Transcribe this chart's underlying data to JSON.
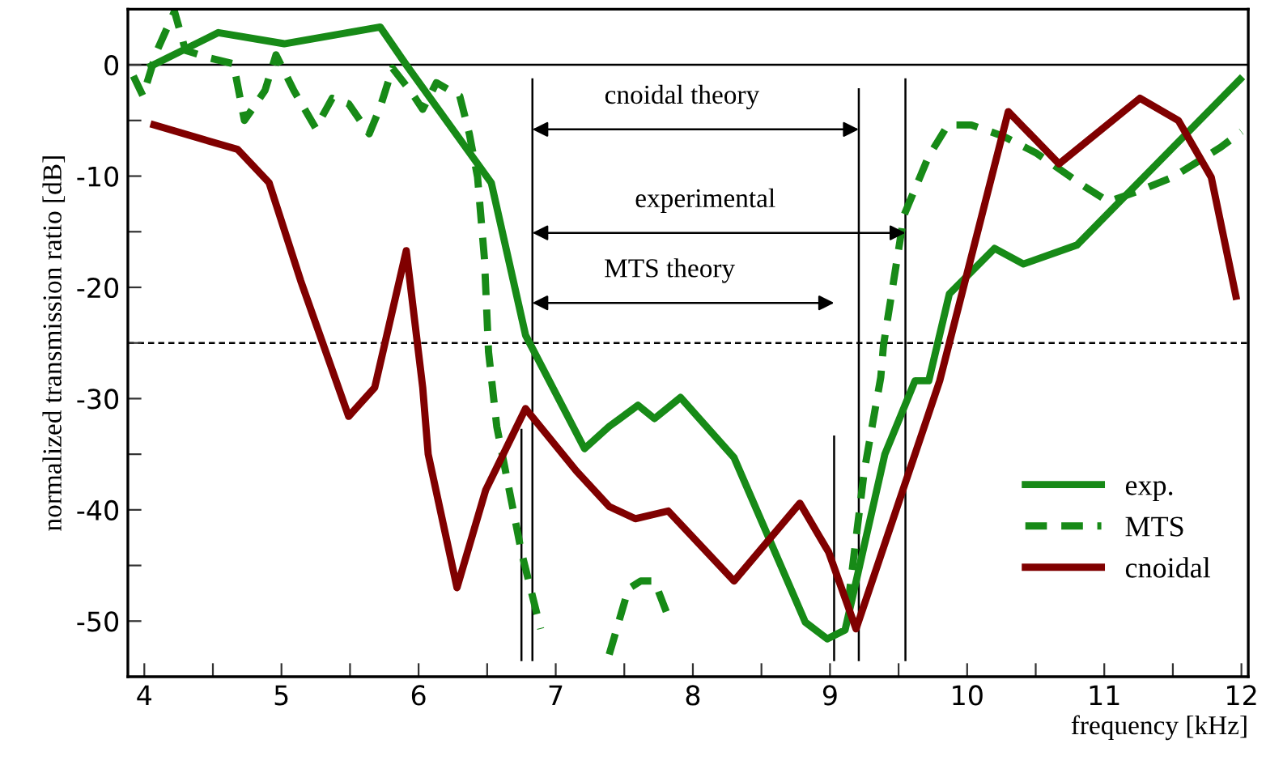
{
  "chart_data": {
    "type": "line",
    "xlabel": "frequency [kHz]",
    "ylabel": "normalized transmission ratio [dB]",
    "xlim": [
      3.88,
      12.05
    ],
    "ylim": [
      -55,
      5
    ],
    "xticks": [
      4,
      {
        "value": 4.5,
        "label": null
      },
      5,
      {
        "value": 5.5,
        "label": null
      },
      6,
      {
        "value": 6.5,
        "label": null
      },
      7,
      {
        "value": 7.5,
        "label": null
      },
      8,
      {
        "value": 8.5,
        "label": null
      },
      9,
      {
        "value": 9.5,
        "label": null
      },
      10,
      {
        "value": 10.5,
        "label": null
      },
      11,
      {
        "value": 11.5,
        "label": null
      },
      12
    ],
    "yticks": [
      -50,
      {
        "value": -45,
        "label": null
      },
      -40,
      {
        "value": -35,
        "label": null
      },
      -30,
      {
        "value": -25,
        "label": null
      },
      -20,
      {
        "value": -15,
        "label": null
      },
      -10,
      {
        "value": -5,
        "label": null
      },
      0
    ],
    "grid": false,
    "legend": "bottom right",
    "marker": "none",
    "series": [
      {
        "name": "exp.",
        "color": "#178a17",
        "line_style": "solid",
        "x": [
          4.05,
          4.54,
          5.02,
          5.72,
          5.91,
          6.53,
          6.78,
          7.21,
          7.39,
          7.6,
          7.72,
          7.91,
          8.3,
          8.82,
          8.98,
          9.11,
          9.4,
          9.62,
          9.72,
          9.87,
          10.2,
          10.41,
          10.8,
          11.99
        ],
        "values": [
          -0.1,
          2.9,
          1.9,
          3.4,
          0,
          -10.6,
          -24.3,
          -34.5,
          -32.5,
          -30.6,
          -31.8,
          -29.9,
          -35.3,
          -50.1,
          -51.6,
          -50.8,
          -35,
          -28.4,
          -28.4,
          -20.6,
          -16.5,
          -17.9,
          -16.2,
          -1.3
        ]
      },
      {
        "name": "MTS",
        "color": "#178a17",
        "line_style": "dashed",
        "x": [
          3.92,
          3.99,
          4.09,
          4.22,
          4.3,
          4.48,
          4.65,
          4.73,
          4.88,
          4.96,
          5.09,
          5.25,
          5.37,
          5.49,
          5.64,
          5.72,
          5.81,
          5.95,
          6.03,
          6.13,
          6.3,
          6.37,
          6.43,
          6.48,
          6.51,
          6.57,
          6.75,
          6.89,
          6.95,
          7.15,
          7.36,
          7.39,
          7.53,
          7.62,
          7.72,
          7.82,
          7.85,
          8.5,
          9.05,
          9.13,
          9.25,
          9.37,
          9.39,
          9.54,
          9.72,
          9.86,
          10.03,
          10.26,
          10.5,
          10.84,
          11.03,
          11.26,
          11.5,
          11.85,
          12.0
        ],
        "values": [
          -1,
          -2.8,
          1.2,
          4.8,
          1.3,
          0.6,
          0.1,
          -5,
          -2.3,
          0.9,
          -2.3,
          -5.7,
          -3,
          -3.5,
          -6.2,
          -3.8,
          -0.3,
          -2.5,
          -4,
          -1.6,
          -2.8,
          -6.2,
          -10.1,
          -17.4,
          -25.8,
          -32.5,
          -43.8,
          -50.7,
          null,
          null,
          null,
          -53,
          -47.1,
          -46.4,
          -46.4,
          -49.6,
          null,
          null,
          null,
          -48.6,
          -36.5,
          -28.1,
          -25.2,
          -13.5,
          -8.2,
          -5.4,
          -5.4,
          -6.4,
          -7.9,
          -10.8,
          -12.3,
          -11.3,
          -10.1,
          -7.4,
          -6
        ]
      },
      {
        "name": "cnoidal",
        "color": "#800000",
        "line_style": "solid",
        "x": [
          4.07,
          4.68,
          4.91,
          5.14,
          5.49,
          5.68,
          5.91,
          6.03,
          6.07,
          6.28,
          6.49,
          6.78,
          7.15,
          7.39,
          7.58,
          7.82,
          8.3,
          8.78,
          8.99,
          9.19,
          9.8,
          10.3,
          10.67,
          11.26,
          11.54,
          11.78,
          11.96
        ],
        "values": [
          -5.4,
          -7.6,
          -10.6,
          -19.4,
          -31.6,
          -29,
          -16.7,
          -29,
          -35,
          -47,
          -38.2,
          -30.9,
          -36.5,
          -39.7,
          -40.8,
          -40.1,
          -46.4,
          -39.4,
          -43.8,
          -50.7,
          -28.4,
          -4.2,
          -8.9,
          -3,
          -5,
          -10.1,
          -20.8
        ]
      }
    ],
    "ref_lines": [
      {
        "axis": "y",
        "value": 0,
        "line_style": "solid",
        "color": "#000000"
      },
      {
        "axis": "y",
        "value": -25,
        "line_style": "dashed",
        "color": "#000000"
      },
      {
        "axis": "x",
        "value": 6.75,
        "color": "#000000"
      },
      {
        "axis": "x",
        "value": 6.83,
        "color": "#000000"
      },
      {
        "axis": "x",
        "value": 9.03,
        "color": "#000000"
      },
      {
        "axis": "x",
        "value": 9.21,
        "color": "#000000"
      },
      {
        "axis": "x",
        "value": 9.55,
        "color": "#000000"
      }
    ],
    "annotations": [
      "cnoidal theory",
      "experimental",
      "MTS theory"
    ]
  }
}
